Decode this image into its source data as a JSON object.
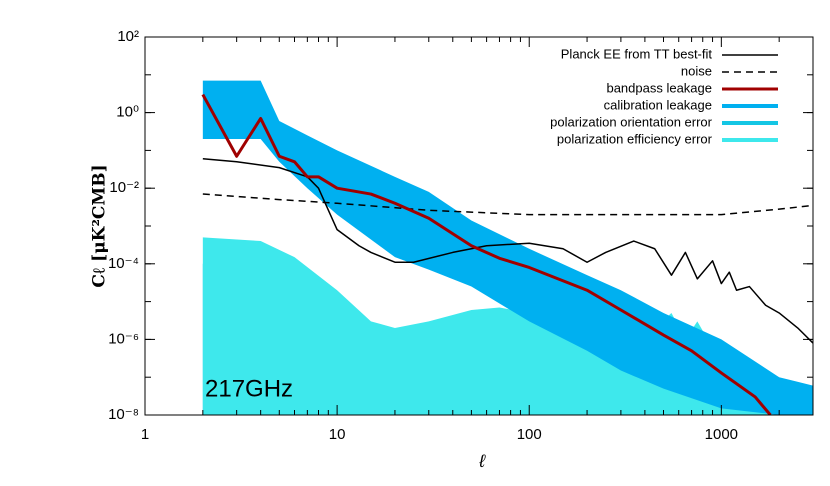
{
  "chart_data": {
    "type": "line",
    "log_x": true,
    "log_y": true,
    "xlabel": "ℓ",
    "ylabel": "Cℓ [μK²CMB]",
    "annotation": "217GHz",
    "legend": "upper right",
    "xlim": [
      1,
      3000
    ],
    "xticks": [
      1,
      10,
      100,
      1000
    ],
    "ylim": [
      1e-08,
      100
    ],
    "yticks": [
      {
        "value": 1e-08,
        "label": "10⁻⁸"
      },
      {
        "value": 1e-06,
        "label": "10⁻⁶"
      },
      {
        "value": 0.0001,
        "label": "10⁻⁴"
      },
      {
        "value": 0.01,
        "label": "10⁻²"
      },
      {
        "value": 1,
        "label": "10⁰"
      },
      {
        "value": 100,
        "label": "10²"
      }
    ],
    "series": [
      {
        "name": "Planck EE from TT best-fit",
        "color": "#000000",
        "kind": "line",
        "linestyle": "solid",
        "width": 1.5,
        "x": [
          2,
          3,
          5,
          7,
          8,
          10,
          13,
          15,
          20,
          25,
          40,
          60,
          100,
          150,
          200,
          250,
          350,
          450,
          550,
          650,
          750,
          900,
          1000,
          1100,
          1200,
          1400,
          1700,
          2000,
          2500,
          3000
        ],
        "values": [
          0.06,
          0.05,
          0.035,
          0.02,
          0.01,
          0.0008,
          0.0003,
          0.0002,
          0.00011,
          0.00011,
          0.0002,
          0.0003,
          0.00035,
          0.00025,
          0.00011,
          0.0002,
          0.0004,
          0.00025,
          5e-05,
          0.0002,
          4e-05,
          0.00012,
          3e-05,
          6e-05,
          2e-05,
          2.5e-05,
          8e-06,
          5e-06,
          2e-06,
          8e-07
        ]
      },
      {
        "name": "noise",
        "color": "#000000",
        "kind": "line",
        "linestyle": "dashed",
        "width": 1.5,
        "x": [
          2,
          5,
          10,
          30,
          100,
          300,
          1000,
          2000,
          3000
        ],
        "values": [
          0.007,
          0.005,
          0.004,
          0.0026,
          0.002,
          0.002,
          0.002,
          0.0028,
          0.0035
        ]
      },
      {
        "name": "bandpass leakage",
        "color": "#a00000",
        "kind": "line",
        "linestyle": "solid",
        "width": 3,
        "x": [
          2,
          3,
          4,
          5,
          6,
          7,
          8,
          10,
          15,
          20,
          30,
          50,
          70,
          100,
          200,
          300,
          500,
          700,
          1000,
          1500,
          1800
        ],
        "values": [
          3,
          0.07,
          0.7,
          0.07,
          0.05,
          0.02,
          0.02,
          0.01,
          0.007,
          0.004,
          0.0016,
          0.0003,
          0.00014,
          8e-05,
          2e-05,
          6e-06,
          1.3e-06,
          5e-07,
          1.3e-07,
          3e-08,
          1e-08
        ]
      },
      {
        "name": "calibration leakage",
        "color": "#00b0f0",
        "kind": "band",
        "width": 4,
        "x": [
          2,
          4,
          5,
          7,
          10,
          20,
          30,
          50,
          100,
          200,
          300,
          500,
          1000,
          2000,
          3000
        ],
        "values": [
          7,
          7,
          0.6,
          0.25,
          0.1,
          0.02,
          0.008,
          0.0014,
          0.00025,
          5e-05,
          2e-05,
          5e-06,
          1e-06,
          1e-07,
          6e-08
        ],
        "lower": [
          0.2,
          0.2,
          0.05,
          0.01,
          0.002,
          0.00015,
          7e-05,
          2.5e-05,
          3e-06,
          5e-07,
          1.5e-07,
          5e-08,
          1.5e-08,
          1e-08,
          1e-08
        ]
      },
      {
        "name": "polarization orientation error",
        "color": "#14c6e4",
        "kind": "area",
        "width": 4,
        "x": [
          2,
          4,
          6,
          10,
          15,
          20,
          30,
          50,
          100,
          200,
          350,
          450,
          550,
          650,
          750,
          900,
          1000,
          1200,
          1500,
          2000,
          3000
        ],
        "values": [
          0.0001,
          8e-05,
          3e-05,
          3e-06,
          6e-07,
          4e-07,
          5e-07,
          1e-06,
          1e-06,
          5e-07,
          2e-06,
          4e-07,
          1e-06,
          2e-07,
          6e-07,
          1.5e-07,
          2e-07,
          5e-08,
          3e-08,
          1.5e-08,
          1e-08
        ]
      },
      {
        "name": "polarization efficiency error",
        "color": "#3ee8ec",
        "kind": "area",
        "width": 4,
        "x": [
          2,
          4,
          6,
          10,
          15,
          20,
          30,
          50,
          70,
          100,
          200,
          300,
          350,
          450,
          550,
          650,
          750,
          900,
          1000,
          1200,
          1500,
          2000,
          3000
        ],
        "values": [
          0.0005,
          0.0004,
          0.00015,
          2e-05,
          3e-06,
          2e-06,
          3e-06,
          6e-06,
          7e-06,
          5e-06,
          2e-06,
          1e-06,
          1e-05,
          2e-06,
          5e-06,
          1e-06,
          3e-06,
          6e-07,
          1e-06,
          2e-07,
          1e-07,
          3e-08,
          2e-08
        ]
      }
    ]
  }
}
